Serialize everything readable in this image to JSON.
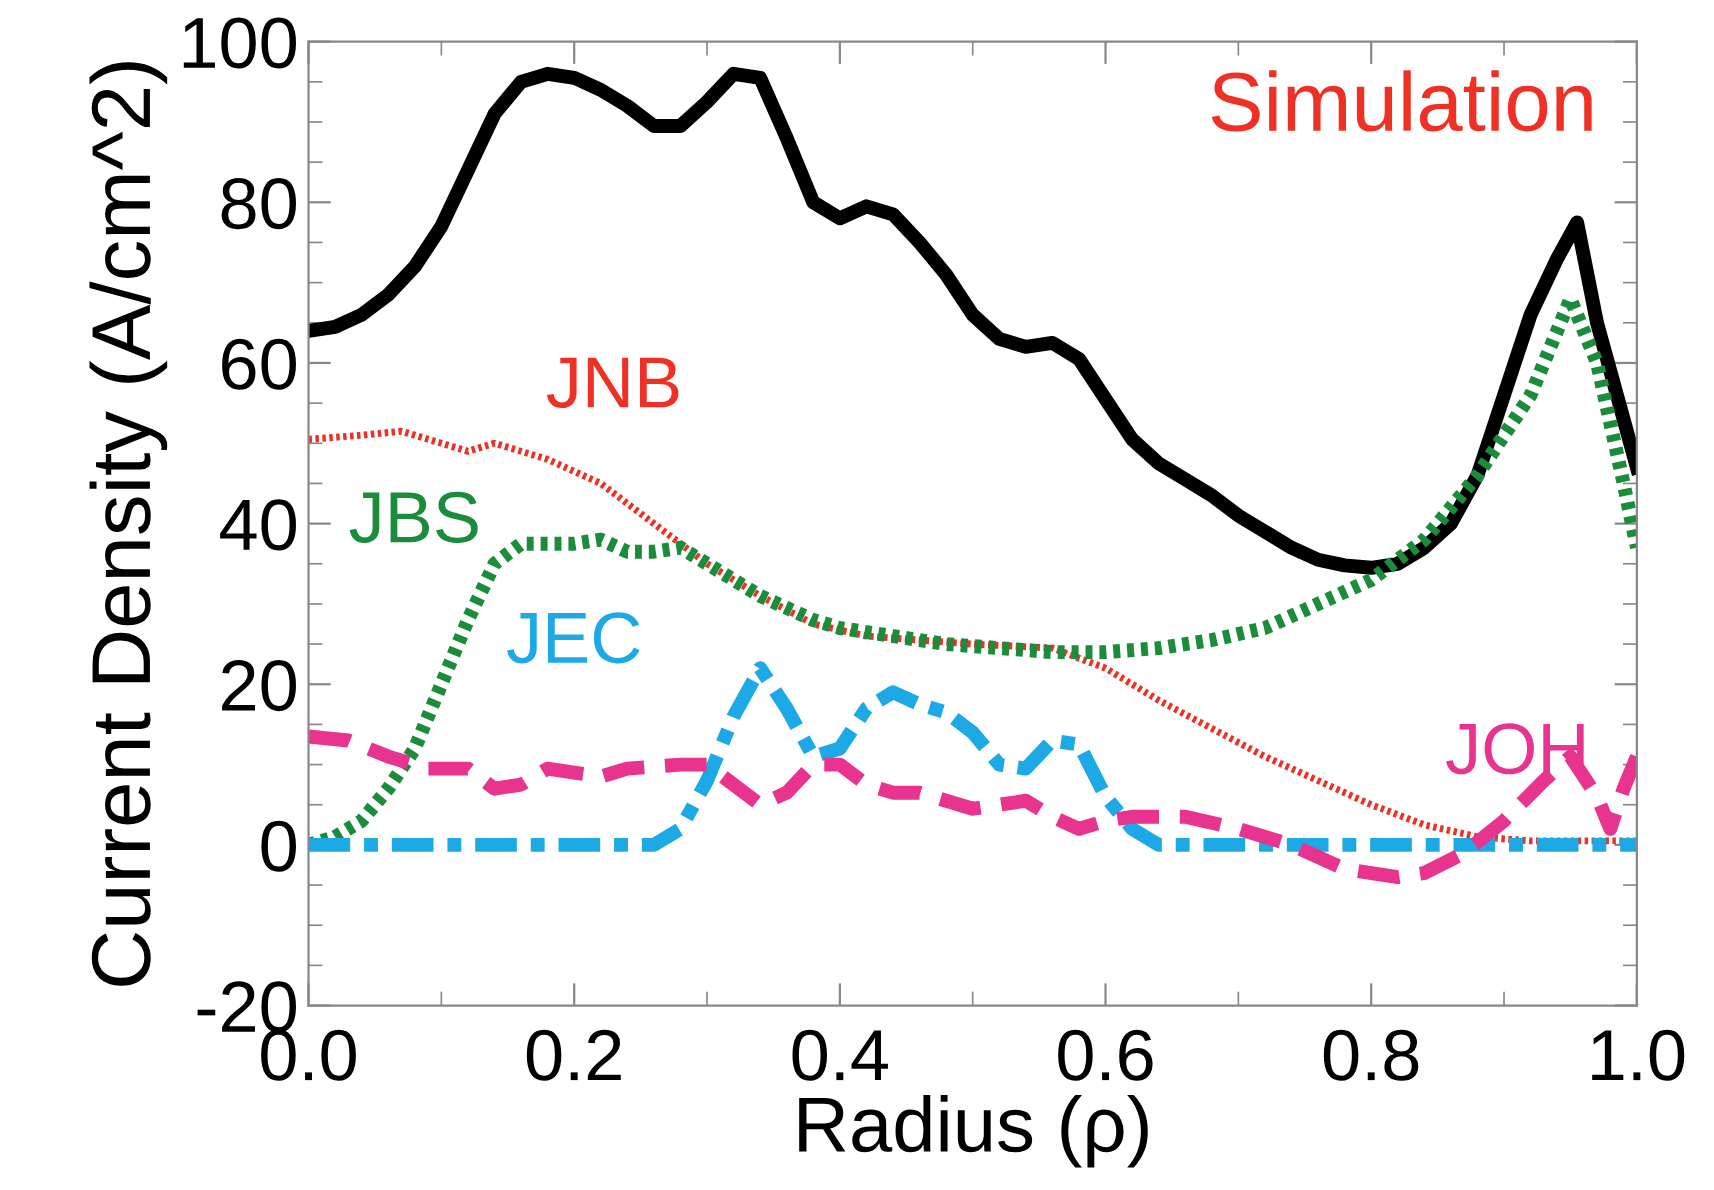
{
  "chart_data": {
    "type": "line",
    "xlabel": "Radius (ρ)",
    "ylabel": "Current Density (A/cm^2)",
    "annotations": [
      "Simulation"
    ],
    "xlim": [
      0.0,
      1.0
    ],
    "xticks": [
      {
        "value": 0,
        "label": "0.0"
      },
      0.2,
      0.4,
      0.6,
      0.8,
      {
        "value": 1,
        "label": "1.0"
      }
    ],
    "ylim": [
      -20,
      100
    ],
    "yticks": [
      -20,
      0,
      20,
      40,
      60,
      80,
      100
    ],
    "grid": false,
    "legend": false,
    "marker": "none",
    "series": [
      {
        "color": "#000000",
        "line_style": "solid",
        "x": [
          0,
          0.02,
          0.04,
          0.06,
          0.08,
          0.1,
          0.12,
          0.14,
          0.16,
          0.18,
          0.2,
          0.22,
          0.24,
          0.26,
          0.28,
          0.3,
          0.32,
          0.34,
          0.36,
          0.38,
          0.4,
          0.42,
          0.44,
          0.46,
          0.48,
          0.5,
          0.52,
          0.54,
          0.56,
          0.58,
          0.6,
          0.62,
          0.64,
          0.66,
          0.68,
          0.7,
          0.72,
          0.74,
          0.76,
          0.78,
          0.8,
          0.82,
          0.84,
          0.86,
          0.88,
          0.9,
          0.92,
          0.94,
          0.955,
          0.97,
          0.985,
          1.0
        ],
        "values": [
          64,
          64.5,
          66,
          68.5,
          72,
          77,
          84,
          91,
          95,
          96,
          95.5,
          94,
          92,
          89.5,
          89.5,
          92.5,
          96,
          95.5,
          88,
          80,
          78,
          79.5,
          78.5,
          75,
          71,
          66,
          63,
          62,
          62.5,
          60.5,
          55.5,
          50.5,
          47.5,
          45.5,
          43.5,
          41,
          39,
          37,
          35.5,
          34.8,
          34.5,
          35,
          37,
          40,
          46,
          56,
          66,
          73,
          77.5,
          65,
          56,
          47
        ]
      },
      {
        "name": "JNB",
        "color": "#ee3124",
        "line_style": "dotted",
        "x": [
          0,
          0.04,
          0.07,
          0.1,
          0.12,
          0.14,
          0.18,
          0.22,
          0.26,
          0.3,
          0.34,
          0.38,
          0.42,
          0.5,
          0.56,
          0.6,
          0.64,
          0.68,
          0.72,
          0.76,
          0.8,
          0.84,
          0.88,
          0.92,
          1.0
        ],
        "values": [
          50.5,
          51,
          51.5,
          50,
          49,
          50,
          48,
          45,
          40,
          35,
          31,
          27.5,
          26,
          25,
          24.5,
          22,
          18,
          14.5,
          11,
          8,
          5,
          2.5,
          1,
          0.5,
          0.5
        ]
      },
      {
        "name": "JBS",
        "color": "#1a8c3a",
        "line_style": "dotted",
        "x": [
          0,
          0.02,
          0.04,
          0.06,
          0.08,
          0.1,
          0.12,
          0.14,
          0.16,
          0.18,
          0.2,
          0.22,
          0.24,
          0.26,
          0.28,
          0.3,
          0.32,
          0.34,
          0.36,
          0.38,
          0.4,
          0.44,
          0.48,
          0.52,
          0.56,
          0.6,
          0.64,
          0.68,
          0.72,
          0.76,
          0.8,
          0.84,
          0.88,
          0.92,
          0.95,
          0.97,
          0.99,
          1.0
        ],
        "values": [
          0,
          1,
          3,
          7,
          12,
          20,
          28,
          35,
          37.5,
          37.5,
          37.5,
          38,
          36.5,
          36.5,
          37,
          35,
          33,
          31,
          29.5,
          28,
          27,
          26,
          25,
          24.5,
          24,
          24,
          24.5,
          25.5,
          27,
          30,
          33,
          38,
          46,
          56,
          68,
          60,
          45,
          37
        ]
      },
      {
        "name": "JEC",
        "color": "#1ca9e6",
        "line_style": "dashdot",
        "x": [
          0,
          0.26,
          0.28,
          0.3,
          0.32,
          0.34,
          0.36,
          0.38,
          0.4,
          0.42,
          0.44,
          0.46,
          0.48,
          0.5,
          0.52,
          0.54,
          0.56,
          0.58,
          0.6,
          0.62,
          0.64,
          1.0
        ],
        "values": [
          0,
          0,
          2,
          8,
          16,
          22,
          17,
          11,
          12,
          17,
          19,
          17.5,
          16.5,
          14,
          10,
          9.5,
          13,
          12.5,
          6,
          2,
          0,
          0
        ]
      },
      {
        "name": "JOH",
        "color": "#e8338f",
        "line_style": "dashed",
        "x": [
          0,
          0.03,
          0.06,
          0.09,
          0.12,
          0.14,
          0.16,
          0.18,
          0.2,
          0.22,
          0.24,
          0.28,
          0.3,
          0.32,
          0.34,
          0.36,
          0.38,
          0.4,
          0.42,
          0.44,
          0.46,
          0.5,
          0.52,
          0.54,
          0.56,
          0.58,
          0.6,
          0.62,
          0.66,
          0.7,
          0.74,
          0.78,
          0.82,
          0.84,
          0.87,
          0.9,
          0.93,
          0.95,
          0.97,
          0.98,
          0.99,
          1.0
        ],
        "values": [
          13.5,
          13,
          11,
          9.5,
          9.5,
          7,
          7.5,
          9.5,
          9,
          8.5,
          9.5,
          10,
          10,
          7.5,
          5,
          6.5,
          10,
          10,
          7.5,
          6.5,
          6.5,
          4.5,
          5,
          5.5,
          3.5,
          2,
          3,
          3.5,
          3.5,
          2,
          0,
          -3,
          -4,
          -3.5,
          -1,
          3,
          8,
          11,
          6,
          2,
          7,
          11
        ]
      }
    ]
  }
}
